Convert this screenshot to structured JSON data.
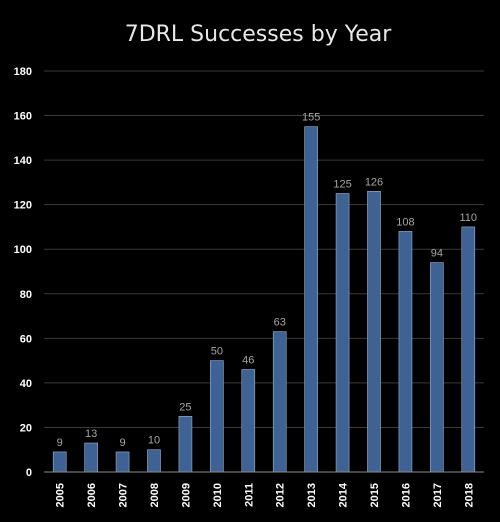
{
  "chart_data": {
    "type": "bar",
    "title": "7DRL Successes by Year",
    "categories": [
      "2005",
      "2006",
      "2007",
      "2008",
      "2009",
      "2010",
      "2011",
      "2012",
      "2013",
      "2014",
      "2015",
      "2016",
      "2017",
      "2018"
    ],
    "values": [
      9,
      13,
      9,
      10,
      25,
      50,
      46,
      63,
      155,
      125,
      126,
      108,
      94,
      110
    ],
    "ylim": [
      0,
      180
    ],
    "yticks": [
      0,
      20,
      40,
      60,
      80,
      100,
      120,
      140,
      160,
      180
    ],
    "grid": true,
    "bar_color": "#3e6294",
    "background": "#000000"
  }
}
